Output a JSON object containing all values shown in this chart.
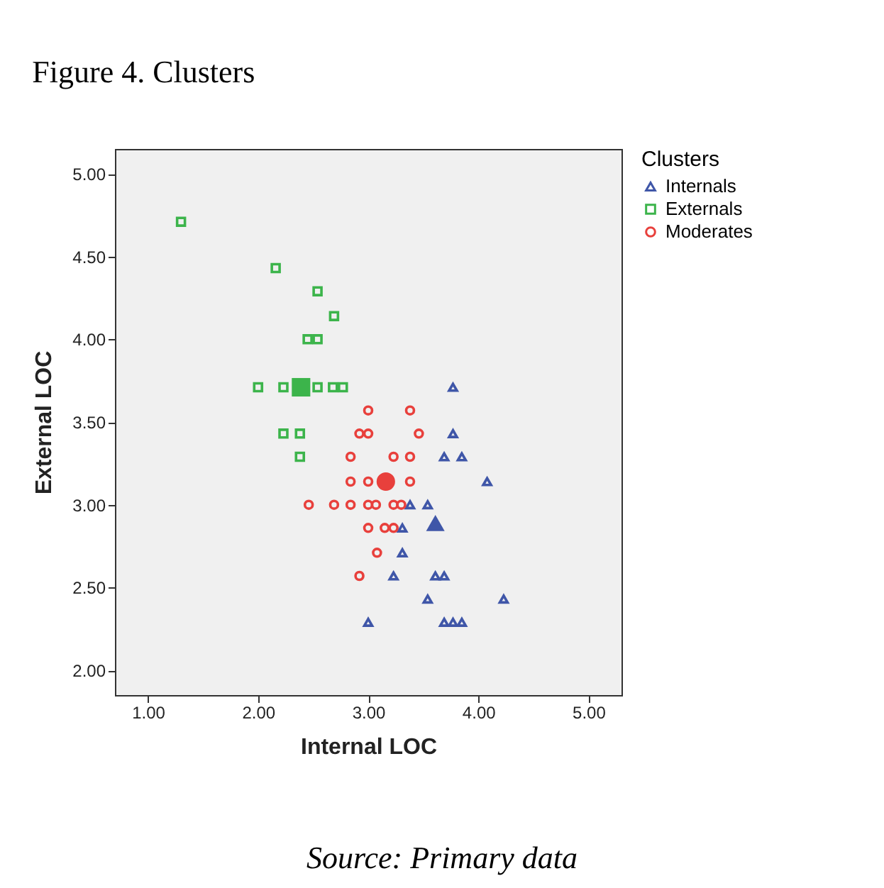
{
  "chart_data": {
    "type": "scatter",
    "title": "Figure 4. Clusters",
    "xlabel": "Internal LOC",
    "ylabel": "External LOC",
    "legend_title": "Clusters",
    "legend": "right",
    "grid": false,
    "xlim": [
      0.7,
      5.3
    ],
    "ylim": [
      1.85,
      5.15
    ],
    "xticks": [
      {
        "value": 1,
        "label": "1.00"
      },
      {
        "value": 2,
        "label": "2.00"
      },
      {
        "value": 3,
        "label": "3.00"
      },
      {
        "value": 4,
        "label": "4.00"
      },
      {
        "value": 5,
        "label": "5.00"
      }
    ],
    "yticks": [
      {
        "value": 2,
        "label": "2.00"
      },
      {
        "value": 2.5,
        "label": "2.50"
      },
      {
        "value": 3,
        "label": "3.00"
      },
      {
        "value": 3.5,
        "label": "3.50"
      },
      {
        "value": 4,
        "label": "4.00"
      },
      {
        "value": 4.5,
        "label": "4.50"
      },
      {
        "value": 5,
        "label": "5.00"
      }
    ],
    "annotations": [
      "Source: Primary data"
    ],
    "series": [
      {
        "name": "Internals",
        "color": "#3f56a8",
        "marker": "triangle",
        "x": [
          3.77,
          3.77,
          3.69,
          3.85,
          4.08,
          3.38,
          3.54,
          3.31,
          3.31,
          3.23,
          3.61,
          3.69,
          3.54,
          4.23,
          3.0,
          3.69,
          3.77,
          3.85
        ],
        "values": [
          3.71,
          3.43,
          3.29,
          3.29,
          3.14,
          3.0,
          3.0,
          2.86,
          2.71,
          2.57,
          2.57,
          2.57,
          2.43,
          2.43,
          2.29,
          2.29,
          2.29,
          2.29
        ]
      },
      {
        "name": "Externals",
        "color": "#3cb44b",
        "marker": "square",
        "x": [
          1.3,
          2.16,
          2.54,
          2.69,
          2.45,
          2.54,
          2.0,
          2.23,
          2.54,
          2.68,
          2.77,
          2.23,
          2.38,
          2.38
        ],
        "values": [
          4.71,
          4.43,
          4.29,
          4.14,
          4.0,
          4.0,
          3.71,
          3.71,
          3.71,
          3.71,
          3.71,
          3.43,
          3.43,
          3.29
        ]
      },
      {
        "name": "Moderates",
        "color": "#e8403c",
        "marker": "circle",
        "x": [
          3.0,
          3.38,
          2.92,
          3.0,
          3.46,
          2.84,
          3.23,
          3.38,
          2.84,
          3.0,
          3.08,
          3.23,
          3.38,
          2.46,
          2.69,
          2.84,
          3.0,
          3.07,
          3.23,
          3.3,
          3.0,
          3.15,
          3.23,
          3.08,
          2.92
        ],
        "values": [
          3.57,
          3.57,
          3.43,
          3.43,
          3.43,
          3.29,
          3.29,
          3.29,
          3.14,
          3.14,
          null,
          null,
          3.14,
          3.0,
          3.0,
          3.0,
          3.0,
          3.0,
          3.0,
          3.0,
          2.86,
          2.86,
          2.86,
          2.71,
          2.57
        ]
      },
      {
        "color": "#3f56a8",
        "marker": "triangle",
        "x": [
          3.61
        ],
        "values": [
          2.89
        ]
      },
      {
        "color": "#3cb44b",
        "marker": "square",
        "x": [
          2.39
        ],
        "values": [
          3.71
        ]
      },
      {
        "color": "#e8403c",
        "marker": "circle",
        "x": [
          3.16
        ],
        "values": [
          3.14
        ]
      }
    ]
  }
}
